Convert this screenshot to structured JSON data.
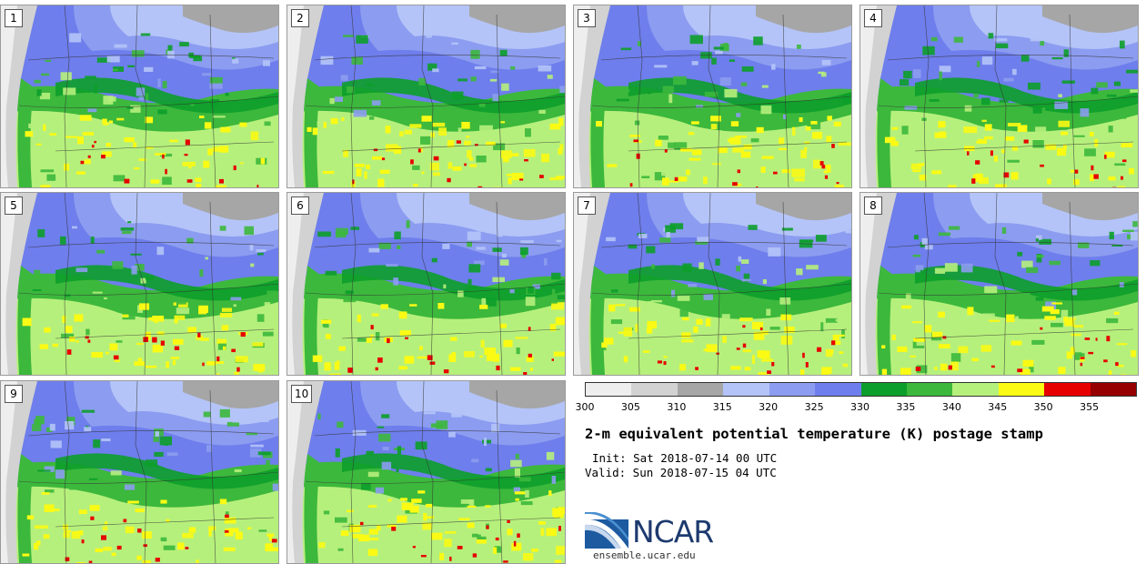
{
  "panels": [
    {
      "label": "1"
    },
    {
      "label": "2"
    },
    {
      "label": "3"
    },
    {
      "label": "4"
    },
    {
      "label": "5"
    },
    {
      "label": "6"
    },
    {
      "label": "7"
    },
    {
      "label": "8"
    },
    {
      "label": "9"
    },
    {
      "label": "10"
    }
  ],
  "colorbar": {
    "colors": [
      "#eeeeee",
      "#d2d2d2",
      "#a6a6a6",
      "#b4c4f8",
      "#8c9cf0",
      "#6e7eec",
      "#0c9e2a",
      "#3cb83c",
      "#b6f07c",
      "#fafa14",
      "#e60000",
      "#960000"
    ],
    "tick_labels": [
      "300",
      "305",
      "310",
      "315",
      "320",
      "325",
      "330",
      "335",
      "340",
      "345",
      "350",
      "355"
    ]
  },
  "title": "2-m equivalent potential temperature (K) postage stamp",
  "init_line": "Init: Sat 2018-07-14 00 UTC",
  "valid_line": "Valid: Sun 2018-07-15 04 UTC",
  "logo": {
    "text": "NCAR",
    "url": "ensemble.ucar.edu"
  }
}
